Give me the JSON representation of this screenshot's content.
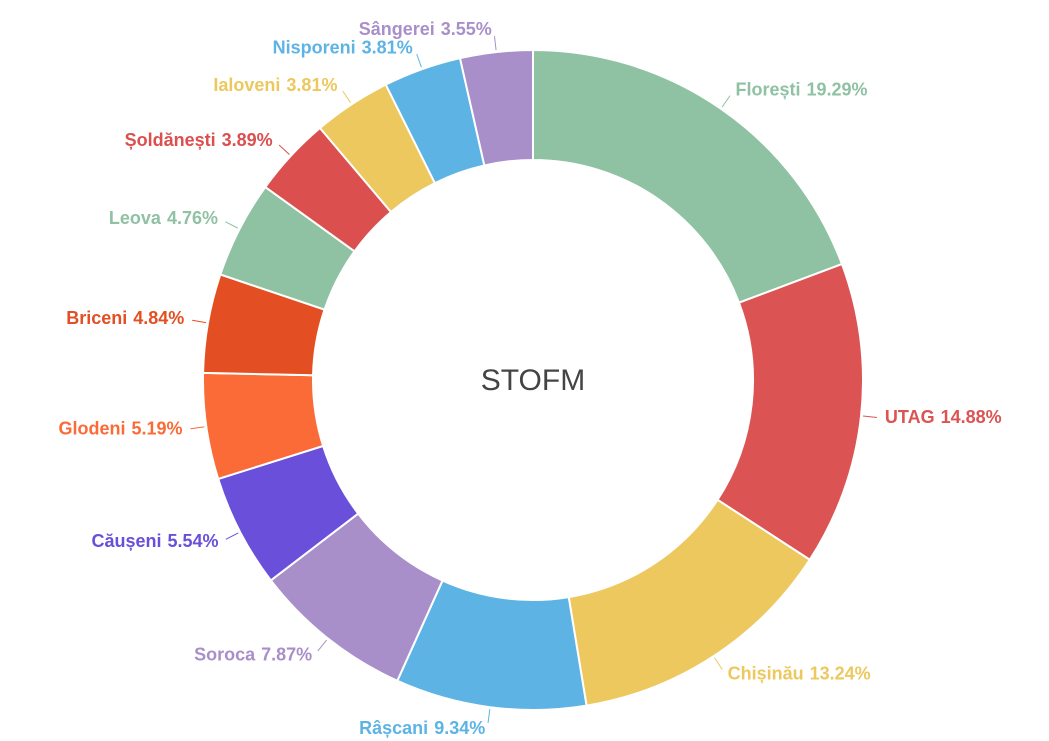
{
  "chart_data": {
    "type": "donut",
    "title": "STOFM",
    "categories": [
      "Florești",
      "UTAG",
      "Chișinău",
      "Râșcani",
      "Soroca",
      "Căușeni",
      "Glodeni",
      "Briceni",
      "Leova",
      "Șoldănești",
      "Ialoveni",
      "Nisporeni",
      "Sângerei"
    ],
    "values": [
      19.29,
      14.88,
      13.24,
      9.34,
      7.87,
      5.54,
      5.19,
      4.84,
      4.76,
      3.89,
      3.81,
      3.81,
      3.55
    ],
    "value_labels": [
      "19.29%",
      "14.88%",
      "13.24%",
      "9.34%",
      "7.87%",
      "5.54%",
      "5.19%",
      "4.84%",
      "4.76%",
      "3.89%",
      "3.81%",
      "3.81%",
      "3.55%"
    ],
    "colors": [
      "#8fc1a3",
      "#dc5353",
      "#ecc85e",
      "#5db4e4",
      "#a98fca",
      "#6a4fdb",
      "#fb6b37",
      "#e34f22",
      "#8fc1a3",
      "#dc4f4f",
      "#ecc85e",
      "#5db4e4",
      "#a98fca"
    ]
  }
}
